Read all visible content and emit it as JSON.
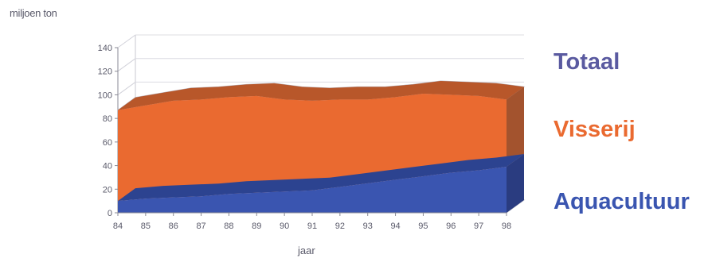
{
  "chart_data": {
    "type": "area",
    "stacked": true,
    "three_d": true,
    "title": "",
    "ylabel": "miljoen ton",
    "xlabel": "jaar",
    "x": [
      "84",
      "85",
      "86",
      "87",
      "88",
      "89",
      "90",
      "91",
      "92",
      "93",
      "94",
      "95",
      "96",
      "97",
      "98"
    ],
    "ylim": [
      0,
      140
    ],
    "yticks": [
      "0",
      "20",
      "40",
      "60",
      "80",
      "100",
      "120",
      "140"
    ],
    "grid": true,
    "legend_position": "right",
    "series": [
      {
        "name": "Aquacultuur",
        "color": "#3a55b0",
        "values": [
          10,
          12,
          13,
          14,
          16,
          17,
          18,
          19,
          22,
          25,
          28,
          31,
          34,
          36,
          39
        ]
      },
      {
        "name": "Visserij",
        "color": "#ea6a30",
        "values": [
          77,
          79,
          82,
          82,
          82,
          82,
          78,
          76,
          74,
          71,
          70,
          70,
          66,
          63,
          57
        ]
      },
      {
        "name": "Totaal",
        "color": "#5a5aa0",
        "values": [
          87,
          91,
          95,
          96,
          98,
          99,
          96,
          95,
          96,
          96,
          98,
          101,
          100,
          99,
          96
        ]
      }
    ]
  }
}
